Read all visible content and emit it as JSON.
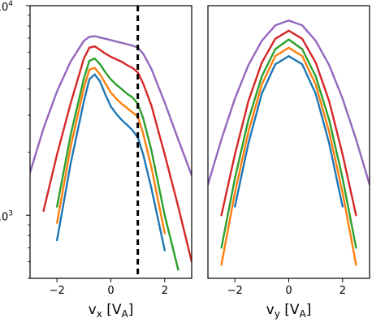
{
  "chart_data": [
    {
      "type": "line",
      "xlabel": "v",
      "xlabel_sub": "x",
      "xlabel_unit_open": "[V",
      "xlabel_unit_sub": "A",
      "xlabel_unit_close": "]",
      "xlim": [
        -3,
        3
      ],
      "ylim": [
        500,
        10000
      ],
      "yscale": "log",
      "xticks": [
        {
          "v": -2,
          "label": "−2"
        },
        {
          "v": 0,
          "label": "0"
        },
        {
          "v": 2,
          "label": "2"
        }
      ],
      "yticks": [
        {
          "v": 1000,
          "base": "10",
          "exp": "3"
        },
        {
          "v": 10000,
          "base": "10",
          "exp": "4"
        }
      ],
      "vline": {
        "x": 1.0,
        "style": "dashed",
        "color": "#000000"
      },
      "x": [
        -3.0,
        -2.5,
        -2.0,
        -1.5,
        -1.0,
        -0.8,
        -0.6,
        -0.4,
        -0.2,
        0.0,
        0.2,
        0.4,
        0.6,
        0.8,
        1.0,
        1.2,
        1.5,
        2.0,
        2.5,
        3.0
      ],
      "series": [
        {
          "color": "#9467bd",
          "values": [
            1600,
            2600,
            3900,
            5400,
            6800,
            7100,
            7150,
            7050,
            6950,
            6850,
            6750,
            6650,
            6550,
            6450,
            6300,
            5900,
            5000,
            3450,
            2300,
            1550
          ]
        },
        {
          "color": "#d62728",
          "values": [
            null,
            1050,
            1950,
            3400,
            5600,
            6300,
            6400,
            6150,
            5900,
            5700,
            5550,
            5400,
            5200,
            5050,
            4800,
            4250,
            3350,
            1950,
            1100,
            600
          ]
        },
        {
          "color": "#2ca02c",
          "values": [
            null,
            null,
            1100,
            2400,
            4500,
            5450,
            5600,
            5250,
            4800,
            4450,
            4200,
            4000,
            3800,
            3650,
            3400,
            2900,
            2050,
            1000,
            550,
            null
          ]
        },
        {
          "color": "#ff7f0e",
          "values": [
            null,
            null,
            920,
            2100,
            4050,
            4950,
            5050,
            4700,
            4250,
            3850,
            3600,
            3400,
            3250,
            3100,
            2950,
            2450,
            1700,
            820,
            null,
            null
          ]
        },
        {
          "color": "#1f77b4",
          "values": [
            null,
            null,
            760,
            1750,
            3500,
            4450,
            4700,
            4350,
            3750,
            3300,
            3050,
            2850,
            2700,
            2550,
            2350,
            1950,
            1350,
            680,
            null,
            null
          ]
        }
      ]
    },
    {
      "type": "line",
      "xlabel": "v",
      "xlabel_sub": "y",
      "xlabel_unit_open": "[V",
      "xlabel_unit_sub": "A",
      "xlabel_unit_close": "]",
      "xlim": [
        -3,
        3
      ],
      "ylim": [
        500,
        10000
      ],
      "yscale": "log",
      "xticks": [
        {
          "v": -2,
          "label": "−2"
        },
        {
          "v": 0,
          "label": "0"
        },
        {
          "v": 2,
          "label": "2"
        }
      ],
      "yticks": [],
      "x": [
        -3.0,
        -2.5,
        -2.0,
        -1.5,
        -1.0,
        -0.5,
        0.0,
        0.5,
        1.0,
        1.5,
        2.0,
        2.5,
        3.0
      ],
      "series": [
        {
          "color": "#9467bd",
          "values": [
            1400,
            2300,
            3600,
            5200,
            6800,
            8050,
            8500,
            8050,
            6800,
            5200,
            3600,
            2300,
            1400
          ]
        },
        {
          "color": "#d62728",
          "values": [
            null,
            1000,
            1950,
            3500,
            5350,
            6950,
            7600,
            6950,
            5350,
            3500,
            1950,
            1000,
            null
          ]
        },
        {
          "color": "#2ca02c",
          "values": [
            null,
            700,
            1500,
            2850,
            4600,
            6200,
            6900,
            6200,
            4600,
            2850,
            1500,
            700,
            null
          ]
        },
        {
          "color": "#ff7f0e",
          "values": [
            null,
            580,
            1280,
            2500,
            4200,
            5750,
            6300,
            5750,
            4200,
            2500,
            1280,
            580,
            null
          ]
        },
        {
          "color": "#1f77b4",
          "values": [
            null,
            null,
            1100,
            2200,
            3800,
            5250,
            5750,
            5250,
            3800,
            2200,
            1100,
            null,
            null
          ]
        }
      ]
    }
  ]
}
